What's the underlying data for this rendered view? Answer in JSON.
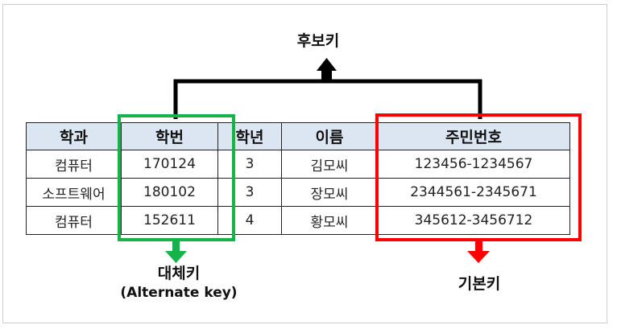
{
  "diagram": {
    "candidate_key_label": "후보키",
    "alternate_key_label": "대체키",
    "alternate_key_sub": "(Alternate key)",
    "primary_key_label": "기본키",
    "colors": {
      "header_bg": "#dce6f2",
      "alternate": "#16b24a",
      "primary": "#ff0000",
      "bracket": "#000000"
    }
  },
  "table": {
    "headers": [
      "학과",
      "학번",
      "학년",
      "이름",
      "주민번호"
    ],
    "rows": [
      [
        "컴퓨터",
        "170124",
        "3",
        "김모씨",
        "123456-1234567"
      ],
      [
        "소프트웨어",
        "180102",
        "3",
        "장모씨",
        "2344561-2345671"
      ],
      [
        "컴퓨터",
        "152611",
        "4",
        "황모씨",
        "345612-3456712"
      ]
    ]
  }
}
